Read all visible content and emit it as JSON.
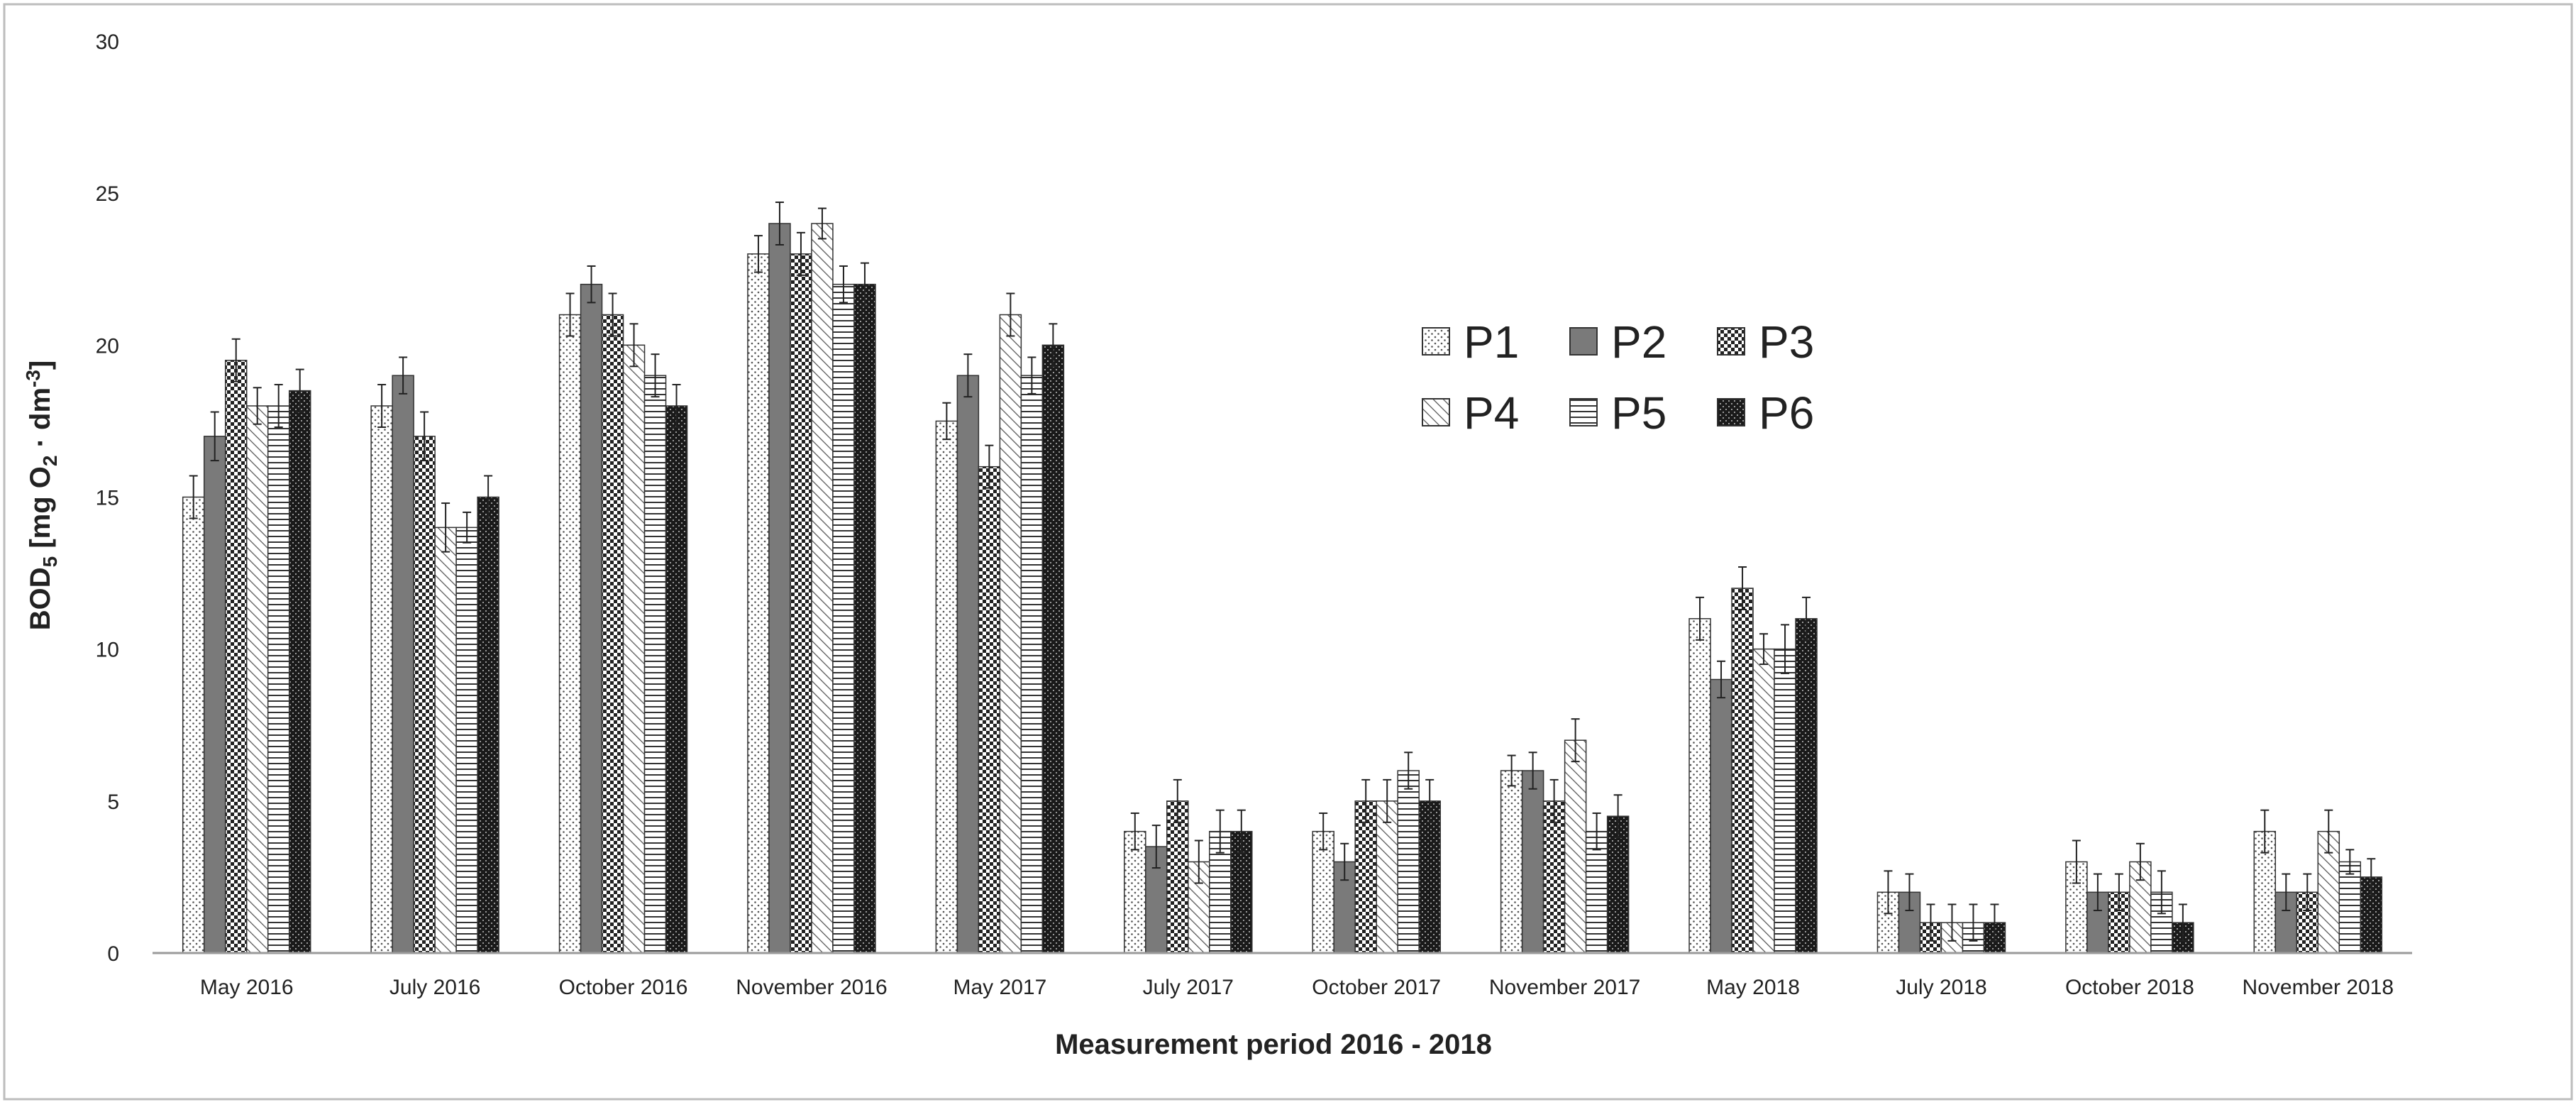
{
  "chart_data": {
    "type": "bar",
    "title": "",
    "xlabel": "Measurement period 2016 - 2018",
    "ylabel": {
      "main": "BOD",
      "sub": "5",
      "rest_open": " [mg O",
      "o_sub": "2",
      "rest_mid": " · dm",
      "sup": "-3",
      "rest_close": "]"
    },
    "ylim": [
      0,
      30
    ],
    "yticks": [
      0,
      5,
      10,
      15,
      20,
      25,
      30
    ],
    "grid": false,
    "legend_position": "right-center",
    "categories": [
      "May 2016",
      "July 2016",
      "October 2016",
      "November 2016",
      "May 2017",
      "July 2017",
      "October 2017",
      "November 2017",
      "May 2018",
      "July 2018",
      "October 2018",
      "November 2018"
    ],
    "series": [
      {
        "name": "P1",
        "pattern": "dots",
        "values": [
          15,
          18,
          21,
          23,
          17.5,
          4,
          4,
          6,
          11,
          2,
          3,
          4
        ],
        "errors": [
          0.7,
          0.7,
          0.7,
          0.6,
          0.6,
          0.6,
          0.6,
          0.5,
          0.7,
          0.7,
          0.7,
          0.7
        ]
      },
      {
        "name": "P2",
        "pattern": "solid-gray",
        "values": [
          17,
          19,
          22,
          24,
          19,
          3.5,
          3,
          6,
          9,
          2,
          2,
          2
        ],
        "errors": [
          0.8,
          0.6,
          0.6,
          0.7,
          0.7,
          0.7,
          0.6,
          0.6,
          0.6,
          0.6,
          0.6,
          0.6
        ]
      },
      {
        "name": "P3",
        "pattern": "checker",
        "values": [
          19.5,
          17,
          21,
          23,
          16,
          5,
          5,
          5,
          12,
          1,
          2,
          2
        ],
        "errors": [
          0.7,
          0.8,
          0.7,
          0.7,
          0.7,
          0.7,
          0.7,
          0.7,
          0.7,
          0.6,
          0.6,
          0.6
        ]
      },
      {
        "name": "P4",
        "pattern": "diagonal",
        "values": [
          18,
          14,
          20,
          24,
          21,
          3,
          5,
          7,
          10,
          1,
          3,
          4
        ],
        "errors": [
          0.6,
          0.8,
          0.7,
          0.5,
          0.7,
          0.7,
          0.7,
          0.7,
          0.5,
          0.6,
          0.6,
          0.7
        ]
      },
      {
        "name": "P5",
        "pattern": "horizontal",
        "values": [
          18,
          14,
          19,
          22,
          19,
          4,
          6,
          4,
          10,
          1,
          2,
          3
        ],
        "errors": [
          0.7,
          0.5,
          0.7,
          0.6,
          0.6,
          0.7,
          0.6,
          0.6,
          0.8,
          0.6,
          0.7,
          0.4
        ]
      },
      {
        "name": "P6",
        "pattern": "dark-check",
        "values": [
          18.5,
          15,
          18,
          22,
          20,
          4,
          5,
          4.5,
          11,
          1,
          1,
          2.5
        ],
        "errors": [
          0.7,
          0.7,
          0.7,
          0.7,
          0.7,
          0.7,
          0.7,
          0.7,
          0.7,
          0.6,
          0.6,
          0.6
        ]
      }
    ]
  }
}
